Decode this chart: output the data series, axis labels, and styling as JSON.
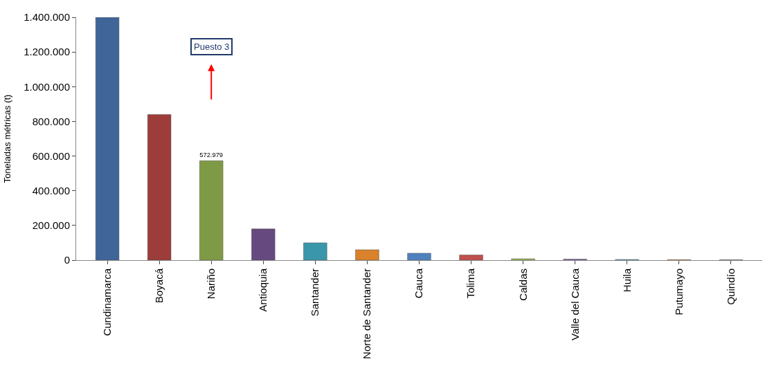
{
  "chart_data": {
    "type": "bar",
    "ylabel": "Toneladas métricas (t)",
    "categories": [
      "Cundinamarca",
      "Boyacá",
      "Nariño",
      "Antioquia",
      "Santander",
      "Norte de Santander",
      "Cauca",
      "Tolima",
      "Caldas",
      "Valle del Cauca",
      "Huila",
      "Putumayo",
      "Quindío"
    ],
    "values": [
      1400000,
      840000,
      572979,
      180000,
      100000,
      60000,
      40000,
      30000,
      8000,
      6000,
      4000,
      3000,
      2000
    ],
    "value_labels": [
      null,
      null,
      "572.979",
      null,
      null,
      null,
      null,
      null,
      null,
      null,
      null,
      null,
      null
    ],
    "colors": [
      "#3f6599",
      "#9c3d3b",
      "#7f9a45",
      "#65497f",
      "#3a96ab",
      "#d9822b",
      "#4f81bd",
      "#c0504d",
      "#9bbb59",
      "#8064a2",
      "#4bacc6",
      "#f79646",
      "#4a6078"
    ],
    "ylim": [
      0,
      1400000
    ],
    "yticks": [
      {
        "value": 0,
        "label": "0"
      },
      {
        "value": 200000,
        "label": "200.000"
      },
      {
        "value": 400000,
        "label": "400.000"
      },
      {
        "value": 600000,
        "label": "600.000"
      },
      {
        "value": 800000,
        "label": "800.000"
      },
      {
        "value": 1000000,
        "label": "1.000.000"
      },
      {
        "value": 1200000,
        "label": "1.200.000"
      },
      {
        "value": 1400000,
        "label": "1.400.000"
      }
    ],
    "annotations": [
      "Puesto 3"
    ],
    "legend": false
  }
}
